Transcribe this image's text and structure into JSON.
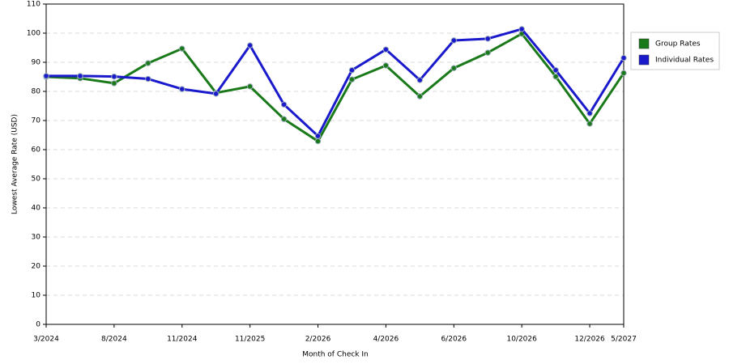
{
  "chart_data": {
    "type": "line",
    "x_label": "Month of Check In",
    "y_label": "Lowest Average Rate (USD)",
    "categories": [
      "3/2024",
      null,
      "8/2024",
      null,
      "11/2024",
      null,
      "11/2025",
      null,
      "2/2026",
      null,
      "4/2026",
      null,
      "6/2026",
      null,
      "10/2026",
      null,
      "12/2026",
      "5/2027"
    ],
    "series": [
      {
        "name": "Group Rates",
        "color": "#1a7a1a",
        "values": [
          85.0,
          84.5,
          82.8,
          89.7,
          94.7,
          79.5,
          81.7,
          70.5,
          62.9,
          84.1,
          88.9,
          78.3,
          88.0,
          93.3,
          99.8,
          85.1,
          68.9,
          86.3
        ]
      },
      {
        "name": "Individual Rates",
        "color": "#1a1acc",
        "values": [
          85.3,
          85.3,
          85.1,
          84.3,
          80.8,
          79.2,
          95.8,
          75.5,
          64.7,
          87.3,
          94.4,
          83.9,
          97.5,
          98.1,
          101.4,
          87.3,
          72.5,
          91.5
        ]
      }
    ],
    "ylim": [
      0,
      110
    ],
    "yticks": [
      0,
      10,
      20,
      30,
      40,
      50,
      60,
      70,
      80,
      90,
      100,
      110
    ],
    "grid": true,
    "legend": "right"
  }
}
